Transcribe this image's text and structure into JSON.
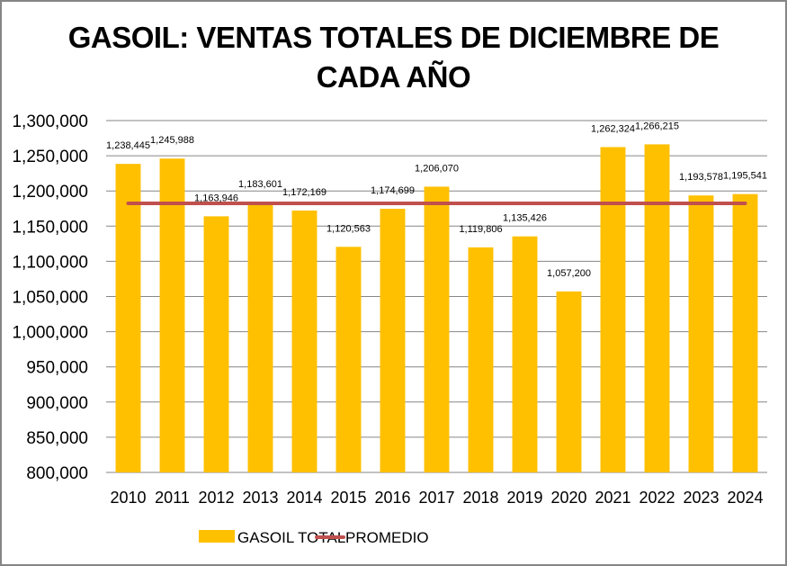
{
  "chart_data": {
    "type": "bar",
    "title_line1": "GASOIL: VENTAS TOTALES DE DICIEMBRE DE",
    "title_line2": "CADA AÑO",
    "xlabel": "",
    "ylabel": "",
    "categories": [
      "2010",
      "2011",
      "2012",
      "2013",
      "2014",
      "2015",
      "2016",
      "2017",
      "2018",
      "2019",
      "2020",
      "2021",
      "2022",
      "2023",
      "2024"
    ],
    "series": [
      {
        "name": "GASOIL TOTAL",
        "type": "bar",
        "color": "#FFC000",
        "values": [
          1238445,
          1245988,
          1163946,
          1183601,
          1172169,
          1120563,
          1174699,
          1206070,
          1119806,
          1135426,
          1057200,
          1262324,
          1266215,
          1193578,
          1195541
        ],
        "labels": [
          "1,238,445",
          "1,245,988",
          "1,163,946",
          "1,183,601",
          "1,172,169",
          "1,120,563",
          "1,174,699",
          "1,206,070",
          "1,119,806",
          "1,135,426",
          "1,057,200",
          "1,262,324",
          "1,266,215",
          "1,193,578",
          "1,195,541"
        ]
      },
      {
        "name": "PROMEDIO",
        "type": "line",
        "color": "#C0504D",
        "value": 1182371
      }
    ],
    "ylim": [
      800000,
      1300000
    ],
    "yticks": [
      "800,000",
      "850,000",
      "900,000",
      "950,000",
      "1,000,000",
      "1,050,000",
      "1,100,000",
      "1,150,000",
      "1,200,000",
      "1,250,000",
      "1,300,000"
    ],
    "ytick_values": [
      800000,
      850000,
      900000,
      950000,
      1000000,
      1050000,
      1100000,
      1150000,
      1200000,
      1250000,
      1300000
    ],
    "grid": true,
    "legend": "bottom"
  }
}
